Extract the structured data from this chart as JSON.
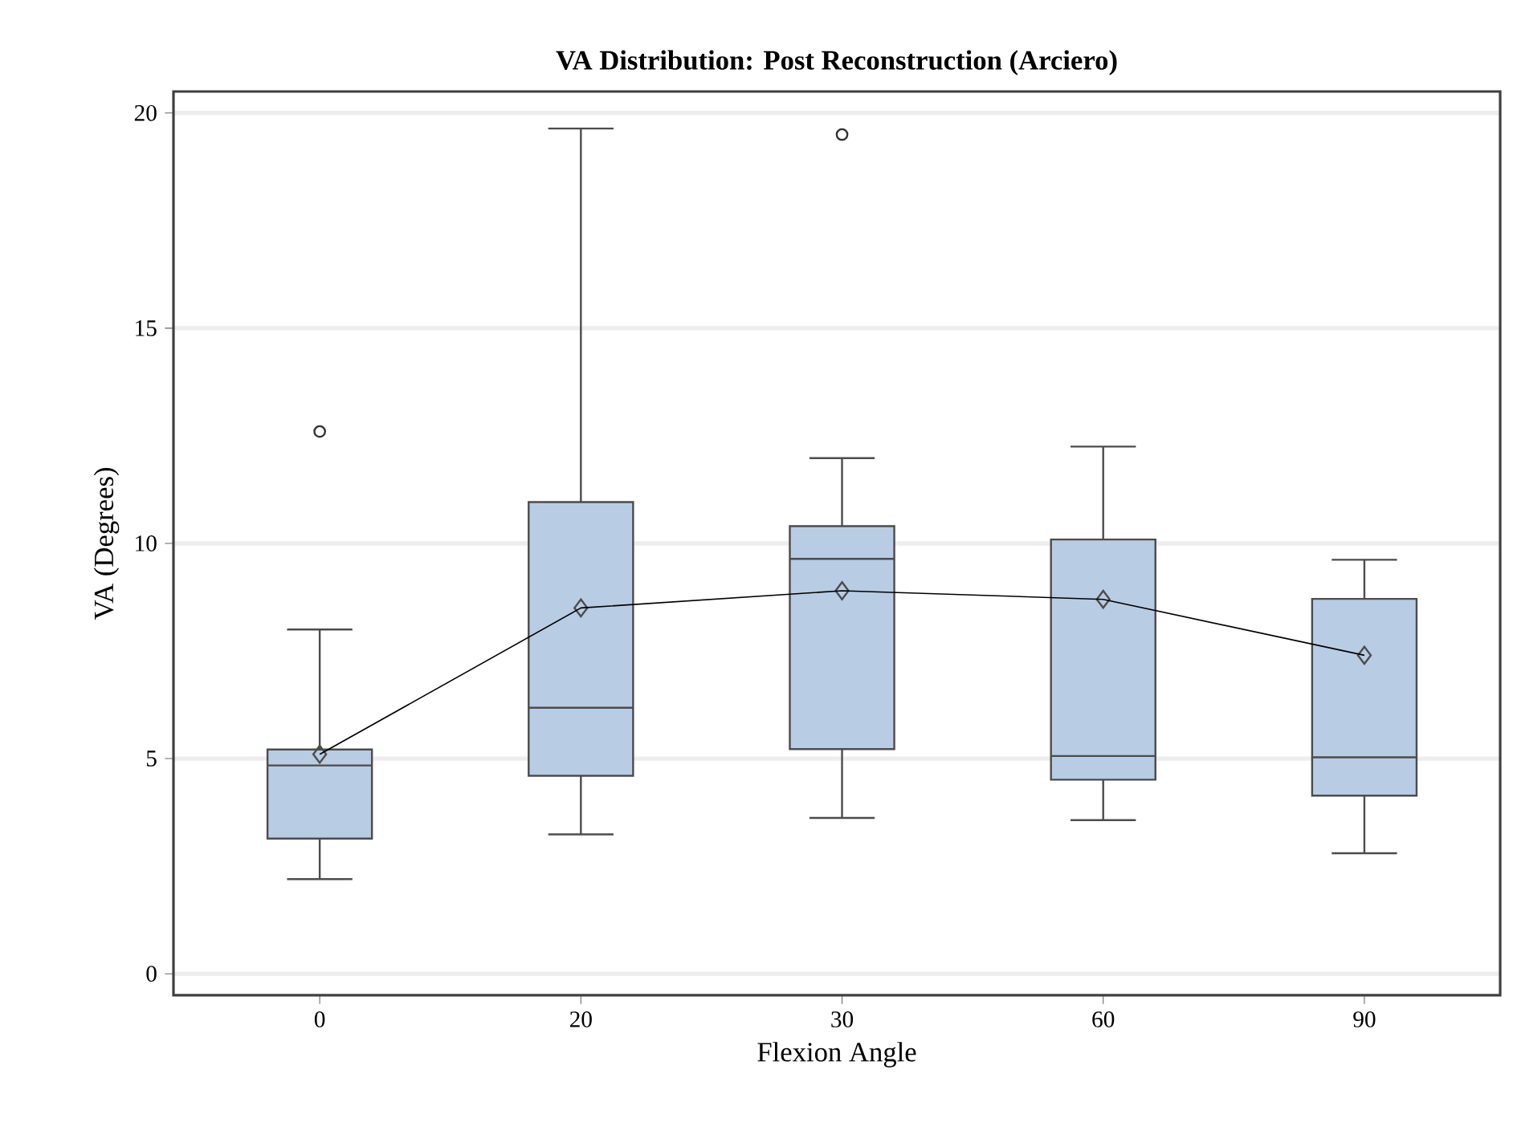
{
  "chart_data": {
    "type": "box",
    "title": "VA Distribution: Post Reconstruction (Arciero)",
    "xlabel": "Flexion Angle",
    "ylabel": "VA (Degrees)",
    "categories": [
      "0",
      "20",
      "30",
      "60",
      "90"
    ],
    "ylim": [
      -0.5,
      20.5
    ],
    "yticks": [
      0,
      5,
      10,
      15,
      20
    ],
    "grid": "y",
    "series": [
      {
        "color": "#b8cce4",
        "boxes": [
          {
            "low": 2.2,
            "q1": 3.14,
            "median": 4.84,
            "q3": 5.21,
            "high": 8.0,
            "mean": 5.1,
            "outliers": [
              12.6
            ]
          },
          {
            "low": 3.24,
            "q1": 4.6,
            "median": 6.18,
            "q3": 10.96,
            "high": 19.64,
            "mean": 8.5
          },
          {
            "low": 3.62,
            "q1": 5.22,
            "median": 9.64,
            "q3": 10.4,
            "high": 11.98,
            "mean": 8.9,
            "outliers": [
              19.5
            ]
          },
          {
            "low": 3.57,
            "q1": 4.51,
            "median": 5.06,
            "q3": 10.09,
            "high": 12.25,
            "mean": 8.7
          },
          {
            "low": 2.8,
            "q1": 4.14,
            "median": 5.03,
            "q3": 8.71,
            "high": 9.62,
            "mean": 7.4
          }
        ]
      },
      {
        "type": "line",
        "color": "#000000",
        "values": [
          5.1,
          8.5,
          8.9,
          8.7,
          7.4
        ]
      }
    ]
  }
}
